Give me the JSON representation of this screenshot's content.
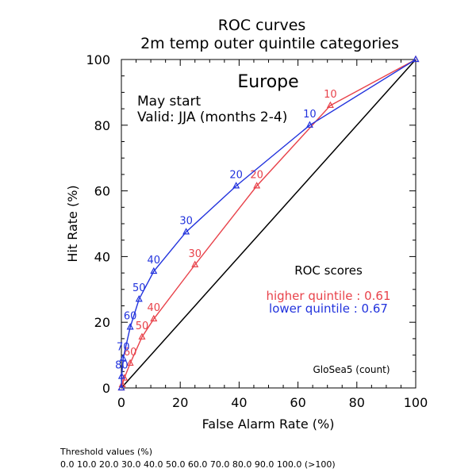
{
  "chart_data": {
    "type": "line",
    "title": "ROC curves",
    "subtitle": "2m temp outer quintile categories",
    "region": "Europe",
    "start_text": "May start",
    "valid_text": "Valid: JJA (months 2-4)",
    "xlabel": "False Alarm Rate (%)",
    "ylabel": "Hit Rate (%)",
    "xlim": [
      0,
      100
    ],
    "ylim": [
      0,
      100
    ],
    "x_ticks": [
      "0",
      "20",
      "40",
      "60",
      "80",
      "100"
    ],
    "y_ticks": [
      "0",
      "20",
      "40",
      "60",
      "80",
      "100"
    ],
    "grid": false,
    "scores_title": "ROC scores",
    "model_label": "GloSea5 (count)",
    "threshold_title": "Threshold values (%)",
    "threshold_values": "0.0 10.0 20.0 30.0 40.0 50.0 60.0 70.0 80.0 90.0 100.0 (>100)",
    "series": [
      {
        "name": "higher quintile",
        "score_text": "higher quintile : 0.61",
        "color": "#e8424a",
        "points": [
          {
            "x": 100,
            "y": 100,
            "label": ""
          },
          {
            "x": 71,
            "y": 86,
            "label": "10"
          },
          {
            "x": 46,
            "y": 61.5,
            "label": "20"
          },
          {
            "x": 25,
            "y": 37.5,
            "label": "30"
          },
          {
            "x": 11,
            "y": 21,
            "label": "40"
          },
          {
            "x": 7,
            "y": 15.5,
            "label": "50"
          },
          {
            "x": 3,
            "y": 7.5,
            "label": "60"
          },
          {
            "x": 1,
            "y": 3,
            "label": ""
          },
          {
            "x": 0.3,
            "y": 1,
            "label": ""
          },
          {
            "x": 0,
            "y": 0,
            "label": ""
          }
        ]
      },
      {
        "name": "lower quintile",
        "score_text": "lower quintile : 0.67",
        "color": "#2233dd",
        "points": [
          {
            "x": 100,
            "y": 100,
            "label": ""
          },
          {
            "x": 64,
            "y": 80,
            "label": "10"
          },
          {
            "x": 39,
            "y": 61.5,
            "label": "20"
          },
          {
            "x": 22,
            "y": 47.5,
            "label": "30"
          },
          {
            "x": 11,
            "y": 35.5,
            "label": "40"
          },
          {
            "x": 6,
            "y": 27,
            "label": "50"
          },
          {
            "x": 3,
            "y": 18.5,
            "label": "60"
          },
          {
            "x": 0.6,
            "y": 9,
            "label": "70"
          },
          {
            "x": 0.1,
            "y": 3.5,
            "label": "80"
          },
          {
            "x": 0,
            "y": 0,
            "label": ""
          }
        ]
      }
    ]
  }
}
